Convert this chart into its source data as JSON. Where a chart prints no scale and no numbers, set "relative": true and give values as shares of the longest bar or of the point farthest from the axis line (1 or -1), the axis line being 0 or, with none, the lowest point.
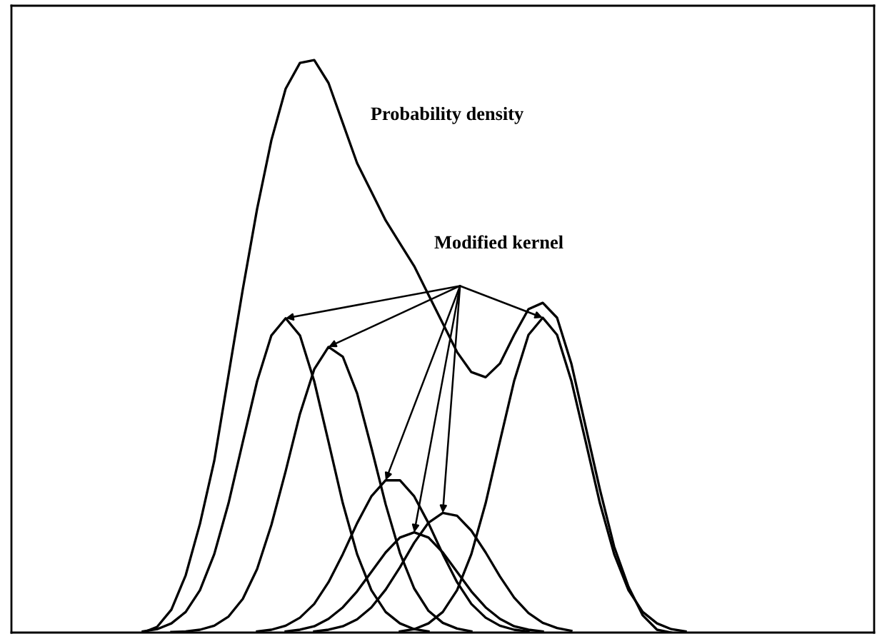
{
  "chart_data": {
    "type": "line",
    "relative": true,
    "grid": false,
    "legend": false,
    "marker": "none",
    "line_style": "solid",
    "annotations": [
      "Probability density",
      "Modified kernel"
    ],
    "categories": [
      null,
      null,
      null,
      null,
      null,
      null,
      null,
      null,
      null,
      null,
      null,
      null,
      null,
      null,
      null,
      null,
      null,
      null,
      null,
      null,
      null,
      null,
      null,
      null,
      null,
      null,
      null,
      null,
      null,
      null,
      null,
      null,
      null,
      null,
      null,
      null,
      null,
      null,
      null
    ],
    "series": [
      {
        "color": "#000000",
        "values": [
          0,
          0.01,
          0.04,
          0.1,
          0.19,
          0.3,
          0.45,
          0.6,
          0.74,
          0.86,
          0.95,
          0.995,
          1.0,
          0.96,
          0.89,
          0.82,
          0.77,
          0.72,
          0.68,
          0.64,
          0.59,
          0.54,
          0.49,
          0.455,
          0.446,
          0.47,
          0.52,
          0.565,
          0.576,
          0.55,
          0.47,
          0.36,
          0.25,
          0.15,
          0.08,
          0.03,
          0.005,
          0,
          null
        ]
      },
      {
        "color": "#000000",
        "values": [
          0.002,
          0.006,
          0.016,
          0.036,
          0.074,
          0.137,
          0.226,
          0.333,
          0.439,
          0.519,
          0.549,
          0.519,
          0.439,
          0.333,
          0.226,
          0.137,
          0.074,
          0.036,
          0.016,
          0.006,
          0.002,
          null,
          null,
          null,
          null,
          null,
          null,
          null,
          null,
          null,
          null,
          null,
          null,
          null,
          null,
          null,
          null,
          null,
          null
        ]
      },
      {
        "color": "#000000",
        "values": [
          null,
          null,
          0.001,
          0.002,
          0.005,
          0.012,
          0.028,
          0.059,
          0.111,
          0.188,
          0.282,
          0.382,
          0.46,
          0.499,
          0.482,
          0.418,
          0.323,
          0.224,
          0.139,
          0.077,
          0.038,
          0.017,
          0.007,
          0.002,
          null,
          null,
          null,
          null,
          null,
          null,
          null,
          null,
          null,
          null,
          null,
          null,
          null,
          null,
          null
        ]
      },
      {
        "color": "#000000",
        "values": [
          null,
          null,
          null,
          null,
          null,
          null,
          null,
          null,
          0.002,
          0.005,
          0.012,
          0.026,
          0.05,
          0.088,
          0.137,
          0.191,
          0.238,
          0.266,
          0.266,
          0.238,
          0.191,
          0.137,
          0.088,
          0.05,
          0.026,
          0.012,
          0.005,
          0.002,
          null,
          null,
          null,
          null,
          null,
          null,
          null,
          null,
          null,
          null,
          null
        ]
      },
      {
        "color": "#000000",
        "values": [
          null,
          null,
          null,
          null,
          null,
          null,
          null,
          null,
          null,
          null,
          0.002,
          0.005,
          0.011,
          0.024,
          0.044,
          0.072,
          0.106,
          0.14,
          0.166,
          0.175,
          0.166,
          0.14,
          0.106,
          0.072,
          0.044,
          0.024,
          0.011,
          0.005,
          0.002,
          null,
          null,
          null,
          null,
          null,
          null,
          null,
          null,
          null,
          null
        ]
      },
      {
        "color": "#000000",
        "values": [
          null,
          null,
          null,
          null,
          null,
          null,
          null,
          null,
          null,
          null,
          null,
          null,
          0.002,
          0.005,
          0.011,
          0.023,
          0.044,
          0.075,
          0.114,
          0.157,
          0.192,
          0.209,
          0.204,
          0.178,
          0.14,
          0.098,
          0.061,
          0.034,
          0.017,
          0.008,
          0.003,
          null,
          null,
          null,
          null,
          null,
          null,
          null,
          null
        ]
      },
      {
        "color": "#000000",
        "values": [
          null,
          null,
          null,
          null,
          null,
          null,
          null,
          null,
          null,
          null,
          null,
          null,
          null,
          null,
          null,
          null,
          null,
          null,
          0.002,
          0.006,
          0.016,
          0.036,
          0.074,
          0.137,
          0.226,
          0.334,
          0.44,
          0.52,
          0.55,
          0.52,
          0.44,
          0.334,
          0.226,
          0.137,
          0.074,
          0.036,
          0.016,
          0.006,
          0.002
        ]
      }
    ]
  }
}
